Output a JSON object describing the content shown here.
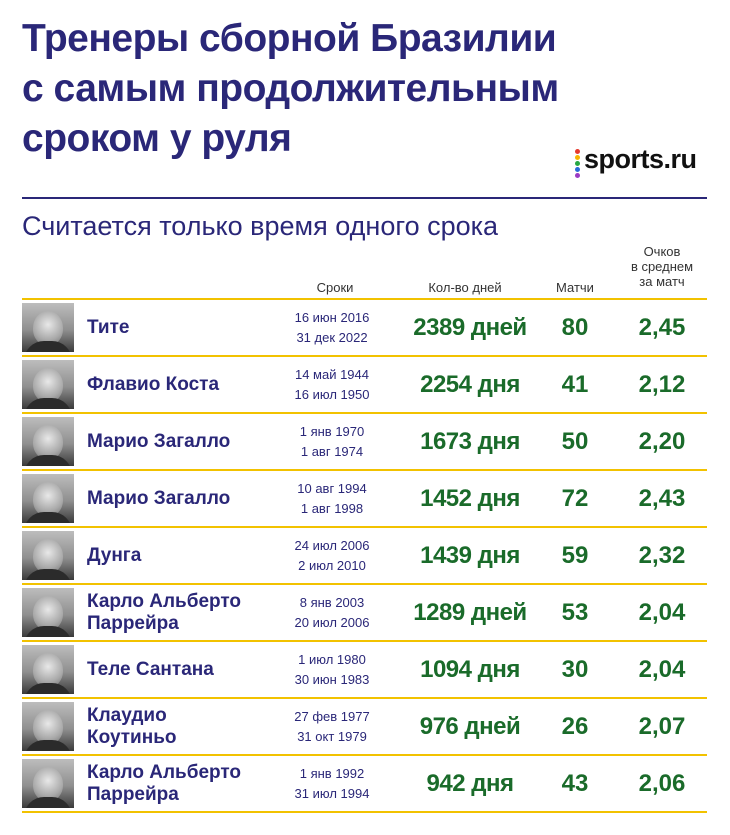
{
  "title_lines": [
    "Тренеры сборной Бразилии",
    "с самым продолжительным",
    "сроком у руля"
  ],
  "subtitle": "Считается только время одного срока",
  "logo": {
    "text": "sports.ru",
    "dot_colors": [
      "#e63a2e",
      "#f7b500",
      "#27a844",
      "#2a6bd8",
      "#9b3bc4"
    ]
  },
  "headers": {
    "terms": "Сроки",
    "days": "Кол-во дней",
    "matches": "Матчи",
    "avg_lines": [
      "Очков",
      "в среднем",
      "за матч"
    ]
  },
  "colors": {
    "title": "#2a2778",
    "values": "#1a6b2a",
    "rule": "#f2c200"
  },
  "rows": [
    {
      "name_lines": [
        "Тите"
      ],
      "start": "16 июн 2016",
      "end": "31 дек 2022",
      "days": "2389 дней",
      "matches": "80",
      "avg": "2,45"
    },
    {
      "name_lines": [
        "Флавио Коста"
      ],
      "start": "14 май 1944",
      "end": "16 июл 1950",
      "days": "2254 дня",
      "matches": "41",
      "avg": "2,12"
    },
    {
      "name_lines": [
        "Марио Загалло"
      ],
      "start": "1 янв 1970",
      "end": "1 авг 1974",
      "days": "1673 дня",
      "matches": "50",
      "avg": "2,20"
    },
    {
      "name_lines": [
        "Марио Загалло"
      ],
      "start": "10 авг 1994",
      "end": "1 авг 1998",
      "days": "1452 дня",
      "matches": "72",
      "avg": "2,43"
    },
    {
      "name_lines": [
        "Дунга"
      ],
      "start": "24 июл 2006",
      "end": "2 июл 2010",
      "days": "1439 дня",
      "matches": "59",
      "avg": "2,32"
    },
    {
      "name_lines": [
        "Карло Альберто",
        "Паррейра"
      ],
      "start": "8 янв 2003",
      "end": "20 июл 2006",
      "days": "1289 дней",
      "matches": "53",
      "avg": "2,04"
    },
    {
      "name_lines": [
        "Теле Сантана"
      ],
      "start": "1 июл 1980",
      "end": "30 июн 1983",
      "days": "1094 дня",
      "matches": "30",
      "avg": "2,04"
    },
    {
      "name_lines": [
        "Клаудио",
        "Коутиньо"
      ],
      "start": "27 фев 1977",
      "end": "31 окт 1979",
      "days": "976 дней",
      "matches": "26",
      "avg": "2,07"
    },
    {
      "name_lines": [
        "Карло Альберто",
        "Паррейра"
      ],
      "start": "1 янв 1992",
      "end": "31 июл 1994",
      "days": "942 дня",
      "matches": "43",
      "avg": "2,06"
    }
  ]
}
